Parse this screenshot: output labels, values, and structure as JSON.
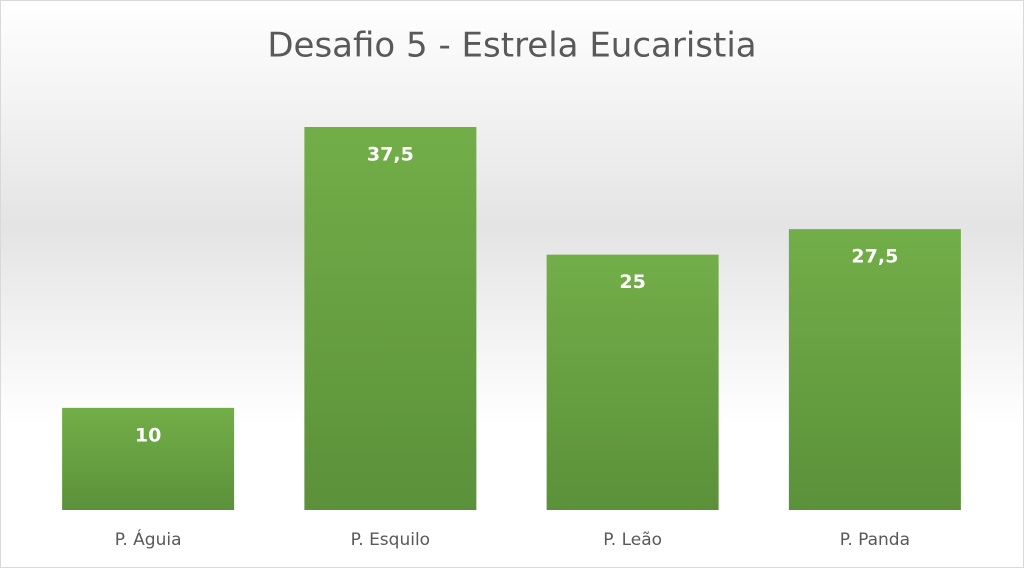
{
  "chart_data": {
    "type": "bar",
    "title": "Desafio 5 - Estrela Eucaristia",
    "categories": [
      "P. Águia",
      "P. Esquilo",
      "P. Leão",
      "P. Panda"
    ],
    "values": [
      10,
      37.5,
      25,
      27.5
    ],
    "value_labels": [
      "10",
      "37,5",
      "25",
      "27,5"
    ],
    "color": "#70ad47"
  }
}
